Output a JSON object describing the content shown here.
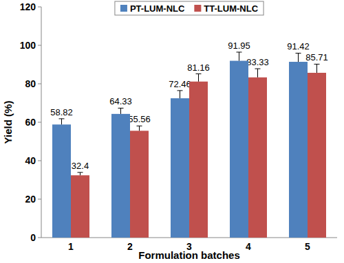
{
  "chart_data": {
    "type": "bar",
    "x_label": "Formulation batches",
    "y_label": "Yield (%)",
    "categories": [
      "1",
      "2",
      "3",
      "4",
      "5"
    ],
    "series": [
      {
        "name": "PT-LUM-NLC",
        "color": "#4f81bd",
        "values": [
          58.82,
          64.33,
          72.46,
          91.95,
          91.42
        ],
        "errors": [
          3,
          3,
          4,
          4.5,
          4.5
        ]
      },
      {
        "name": "TT-LUM-NLC",
        "color": "#c0504d",
        "values": [
          32.4,
          55.56,
          81.16,
          83.33,
          85.71
        ],
        "errors": [
          1.5,
          2.5,
          4,
          4.5,
          4.5
        ]
      }
    ],
    "ylim": [
      0,
      120
    ],
    "yticks": [
      0,
      20,
      40,
      60,
      80,
      100,
      120
    ],
    "grid": false,
    "legend": "top",
    "data_labels": true
  }
}
